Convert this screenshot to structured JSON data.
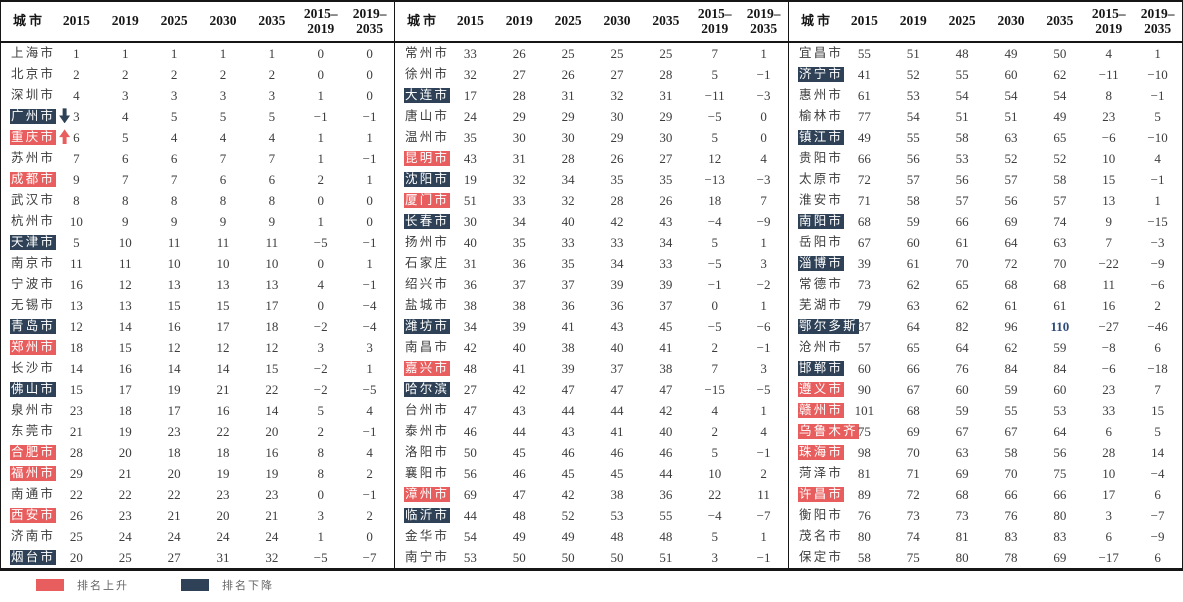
{
  "colors": {
    "up": "#e85d5d",
    "down": "#2e4156",
    "text": "#3d3d3d",
    "special_value": "#2e4b77"
  },
  "legend": {
    "up_label": "排名上升",
    "down_label": "排名下降"
  },
  "table": {
    "col_headers": [
      "城市",
      "2015",
      "2019",
      "2025",
      "2030",
      "2035",
      "2015–\n2019",
      "2019–\n2035"
    ],
    "panels": [
      {
        "rows": [
          {
            "city": "上海市",
            "vals": [
              "1",
              "1",
              "1",
              "1",
              "1",
              "0",
              "0"
            ]
          },
          {
            "city": "北京市",
            "vals": [
              "2",
              "2",
              "2",
              "2",
              "2",
              "0",
              "0"
            ]
          },
          {
            "city": "深圳市",
            "vals": [
              "4",
              "3",
              "3",
              "3",
              "3",
              "1",
              "0"
            ]
          },
          {
            "city": "广州市",
            "mark": "down",
            "arrow": "down",
            "vals": [
              "3",
              "4",
              "5",
              "5",
              "5",
              "−1",
              "−1"
            ]
          },
          {
            "city": "重庆市",
            "mark": "up",
            "arrow": "up",
            "vals": [
              "6",
              "5",
              "4",
              "4",
              "4",
              "1",
              "1"
            ]
          },
          {
            "city": "苏州市",
            "vals": [
              "7",
              "6",
              "6",
              "7",
              "7",
              "1",
              "−1"
            ]
          },
          {
            "city": "成都市",
            "mark": "up",
            "vals": [
              "9",
              "7",
              "7",
              "6",
              "6",
              "2",
              "1"
            ]
          },
          {
            "city": "武汉市",
            "vals": [
              "8",
              "8",
              "8",
              "8",
              "8",
              "0",
              "0"
            ]
          },
          {
            "city": "杭州市",
            "vals": [
              "10",
              "9",
              "9",
              "9",
              "9",
              "1",
              "0"
            ]
          },
          {
            "city": "天津市",
            "mark": "down",
            "vals": [
              "5",
              "10",
              "11",
              "11",
              "11",
              "−5",
              "−1"
            ]
          },
          {
            "city": "南京市",
            "vals": [
              "11",
              "11",
              "10",
              "10",
              "10",
              "0",
              "1"
            ]
          },
          {
            "city": "宁波市",
            "vals": [
              "16",
              "12",
              "13",
              "13",
              "13",
              "4",
              "−1"
            ]
          },
          {
            "city": "无锡市",
            "vals": [
              "13",
              "13",
              "15",
              "15",
              "17",
              "0",
              "−4"
            ]
          },
          {
            "city": "青岛市",
            "mark": "down",
            "vals": [
              "12",
              "14",
              "16",
              "17",
              "18",
              "−2",
              "−4"
            ]
          },
          {
            "city": "郑州市",
            "mark": "up",
            "vals": [
              "18",
              "15",
              "12",
              "12",
              "12",
              "3",
              "3"
            ]
          },
          {
            "city": "长沙市",
            "vals": [
              "14",
              "16",
              "14",
              "14",
              "15",
              "−2",
              "1"
            ]
          },
          {
            "city": "佛山市",
            "mark": "down",
            "vals": [
              "15",
              "17",
              "19",
              "21",
              "22",
              "−2",
              "−5"
            ]
          },
          {
            "city": "泉州市",
            "vals": [
              "23",
              "18",
              "17",
              "16",
              "14",
              "5",
              "4"
            ]
          },
          {
            "city": "东莞市",
            "vals": [
              "21",
              "19",
              "23",
              "22",
              "20",
              "2",
              "−1"
            ]
          },
          {
            "city": "合肥市",
            "mark": "up",
            "vals": [
              "28",
              "20",
              "18",
              "18",
              "16",
              "8",
              "4"
            ]
          },
          {
            "city": "福州市",
            "mark": "up",
            "vals": [
              "29",
              "21",
              "20",
              "19",
              "19",
              "8",
              "2"
            ]
          },
          {
            "city": "南通市",
            "vals": [
              "22",
              "22",
              "22",
              "23",
              "23",
              "0",
              "−1"
            ]
          },
          {
            "city": "西安市",
            "mark": "up",
            "vals": [
              "26",
              "23",
              "21",
              "20",
              "21",
              "3",
              "2"
            ]
          },
          {
            "city": "济南市",
            "vals": [
              "25",
              "24",
              "24",
              "24",
              "24",
              "1",
              "0"
            ]
          },
          {
            "city": "烟台市",
            "mark": "down",
            "vals": [
              "20",
              "25",
              "27",
              "31",
              "32",
              "−5",
              "−7"
            ]
          }
        ]
      },
      {
        "rows": [
          {
            "city": "常州市",
            "vals": [
              "33",
              "26",
              "25",
              "25",
              "25",
              "7",
              "1"
            ]
          },
          {
            "city": "徐州市",
            "vals": [
              "32",
              "27",
              "26",
              "27",
              "28",
              "5",
              "−1"
            ]
          },
          {
            "city": "大连市",
            "mark": "down",
            "vals": [
              "17",
              "28",
              "31",
              "32",
              "31",
              "−11",
              "−3"
            ]
          },
          {
            "city": "唐山市",
            "vals": [
              "24",
              "29",
              "29",
              "30",
              "29",
              "−5",
              "0"
            ]
          },
          {
            "city": "温州市",
            "vals": [
              "35",
              "30",
              "30",
              "29",
              "30",
              "5",
              "0"
            ]
          },
          {
            "city": "昆明市",
            "mark": "up",
            "vals": [
              "43",
              "31",
              "28",
              "26",
              "27",
              "12",
              "4"
            ]
          },
          {
            "city": "沈阳市",
            "mark": "down",
            "vals": [
              "19",
              "32",
              "34",
              "35",
              "35",
              "−13",
              "−3"
            ]
          },
          {
            "city": "厦门市",
            "mark": "up",
            "vals": [
              "51",
              "33",
              "32",
              "28",
              "26",
              "18",
              "7"
            ]
          },
          {
            "city": "长春市",
            "mark": "down",
            "vals": [
              "30",
              "34",
              "40",
              "42",
              "43",
              "−4",
              "−9"
            ]
          },
          {
            "city": "扬州市",
            "vals": [
              "40",
              "35",
              "33",
              "33",
              "34",
              "5",
              "1"
            ]
          },
          {
            "city": "石家庄",
            "vals": [
              "31",
              "36",
              "35",
              "34",
              "33",
              "−5",
              "3"
            ]
          },
          {
            "city": "绍兴市",
            "vals": [
              "36",
              "37",
              "37",
              "39",
              "39",
              "−1",
              "−2"
            ]
          },
          {
            "city": "盐城市",
            "vals": [
              "38",
              "38",
              "36",
              "36",
              "37",
              "0",
              "1"
            ]
          },
          {
            "city": "潍坊市",
            "mark": "down",
            "vals": [
              "34",
              "39",
              "41",
              "43",
              "45",
              "−5",
              "−6"
            ]
          },
          {
            "city": "南昌市",
            "vals": [
              "42",
              "40",
              "38",
              "40",
              "41",
              "2",
              "−1"
            ]
          },
          {
            "city": "嘉兴市",
            "mark": "up",
            "vals": [
              "48",
              "41",
              "39",
              "37",
              "38",
              "7",
              "3"
            ]
          },
          {
            "city": "哈尔滨",
            "mark": "down",
            "vals": [
              "27",
              "42",
              "47",
              "47",
              "47",
              "−15",
              "−5"
            ]
          },
          {
            "city": "台州市",
            "vals": [
              "47",
              "43",
              "44",
              "44",
              "42",
              "4",
              "1"
            ]
          },
          {
            "city": "泰州市",
            "vals": [
              "46",
              "44",
              "43",
              "41",
              "40",
              "2",
              "4"
            ]
          },
          {
            "city": "洛阳市",
            "vals": [
              "50",
              "45",
              "46",
              "46",
              "46",
              "5",
              "−1"
            ]
          },
          {
            "city": "襄阳市",
            "vals": [
              "56",
              "46",
              "45",
              "45",
              "44",
              "10",
              "2"
            ]
          },
          {
            "city": "漳州市",
            "mark": "up",
            "vals": [
              "69",
              "47",
              "42",
              "38",
              "36",
              "22",
              "11"
            ]
          },
          {
            "city": "临沂市",
            "mark": "down",
            "vals": [
              "44",
              "48",
              "52",
              "53",
              "55",
              "−4",
              "−7"
            ]
          },
          {
            "city": "金华市",
            "vals": [
              "54",
              "49",
              "49",
              "48",
              "48",
              "5",
              "1"
            ]
          },
          {
            "city": "南宁市",
            "vals": [
              "53",
              "50",
              "50",
              "50",
              "51",
              "3",
              "−1"
            ]
          }
        ]
      },
      {
        "rows": [
          {
            "city": "宜昌市",
            "vals": [
              "55",
              "51",
              "48",
              "49",
              "50",
              "4",
              "1"
            ]
          },
          {
            "city": "济宁市",
            "mark": "down",
            "vals": [
              "41",
              "52",
              "55",
              "60",
              "62",
              "−11",
              "−10"
            ]
          },
          {
            "city": "惠州市",
            "vals": [
              "61",
              "53",
              "54",
              "54",
              "54",
              "8",
              "−1"
            ]
          },
          {
            "city": "榆林市",
            "vals": [
              "77",
              "54",
              "51",
              "51",
              "49",
              "23",
              "5"
            ]
          },
          {
            "city": "镇江市",
            "mark": "down",
            "vals": [
              "49",
              "55",
              "58",
              "63",
              "65",
              "−6",
              "−10"
            ]
          },
          {
            "city": "贵阳市",
            "vals": [
              "66",
              "56",
              "53",
              "52",
              "52",
              "10",
              "4"
            ]
          },
          {
            "city": "太原市",
            "vals": [
              "72",
              "57",
              "56",
              "57",
              "58",
              "15",
              "−1"
            ]
          },
          {
            "city": "淮安市",
            "vals": [
              "71",
              "58",
              "57",
              "56",
              "57",
              "13",
              "1"
            ]
          },
          {
            "city": "南阳市",
            "mark": "down",
            "vals": [
              "68",
              "59",
              "66",
              "69",
              "74",
              "9",
              "−15"
            ]
          },
          {
            "city": "岳阳市",
            "vals": [
              "67",
              "60",
              "61",
              "64",
              "63",
              "7",
              "−3"
            ]
          },
          {
            "city": "淄博市",
            "mark": "down",
            "vals": [
              "39",
              "61",
              "70",
              "72",
              "70",
              "−22",
              "−9"
            ]
          },
          {
            "city": "常德市",
            "vals": [
              "73",
              "62",
              "65",
              "68",
              "68",
              "11",
              "−6"
            ]
          },
          {
            "city": "芜湖市",
            "vals": [
              "79",
              "63",
              "62",
              "61",
              "61",
              "16",
              "2"
            ]
          },
          {
            "city": "鄂尔多斯",
            "mark": "down",
            "val_hl": 4,
            "vals": [
              "37",
              "64",
              "82",
              "96",
              "110",
              "−27",
              "−46"
            ]
          },
          {
            "city": "沧州市",
            "vals": [
              "57",
              "65",
              "64",
              "62",
              "59",
              "−8",
              "6"
            ]
          },
          {
            "city": "邯郸市",
            "mark": "down",
            "vals": [
              "60",
              "66",
              "76",
              "84",
              "84",
              "−6",
              "−18"
            ]
          },
          {
            "city": "遵义市",
            "mark": "up",
            "vals": [
              "90",
              "67",
              "60",
              "59",
              "60",
              "23",
              "7"
            ]
          },
          {
            "city": "赣州市",
            "mark": "up",
            "vals": [
              "101",
              "68",
              "59",
              "55",
              "53",
              "33",
              "15"
            ]
          },
          {
            "city": "乌鲁木齐",
            "mark": "up",
            "vals": [
              "75",
              "69",
              "67",
              "67",
              "64",
              "6",
              "5"
            ]
          },
          {
            "city": "珠海市",
            "mark": "up",
            "vals": [
              "98",
              "70",
              "63",
              "58",
              "56",
              "28",
              "14"
            ]
          },
          {
            "city": "菏泽市",
            "vals": [
              "81",
              "71",
              "69",
              "70",
              "75",
              "10",
              "−4"
            ]
          },
          {
            "city": "许昌市",
            "mark": "up",
            "vals": [
              "89",
              "72",
              "68",
              "66",
              "66",
              "17",
              "6"
            ]
          },
          {
            "city": "衡阳市",
            "vals": [
              "76",
              "73",
              "73",
              "76",
              "80",
              "3",
              "−7"
            ]
          },
          {
            "city": "茂名市",
            "vals": [
              "80",
              "74",
              "81",
              "83",
              "83",
              "6",
              "−9"
            ]
          },
          {
            "city": "保定市",
            "vals": [
              "58",
              "75",
              "80",
              "78",
              "69",
              "−17",
              "6"
            ]
          }
        ]
      }
    ]
  }
}
